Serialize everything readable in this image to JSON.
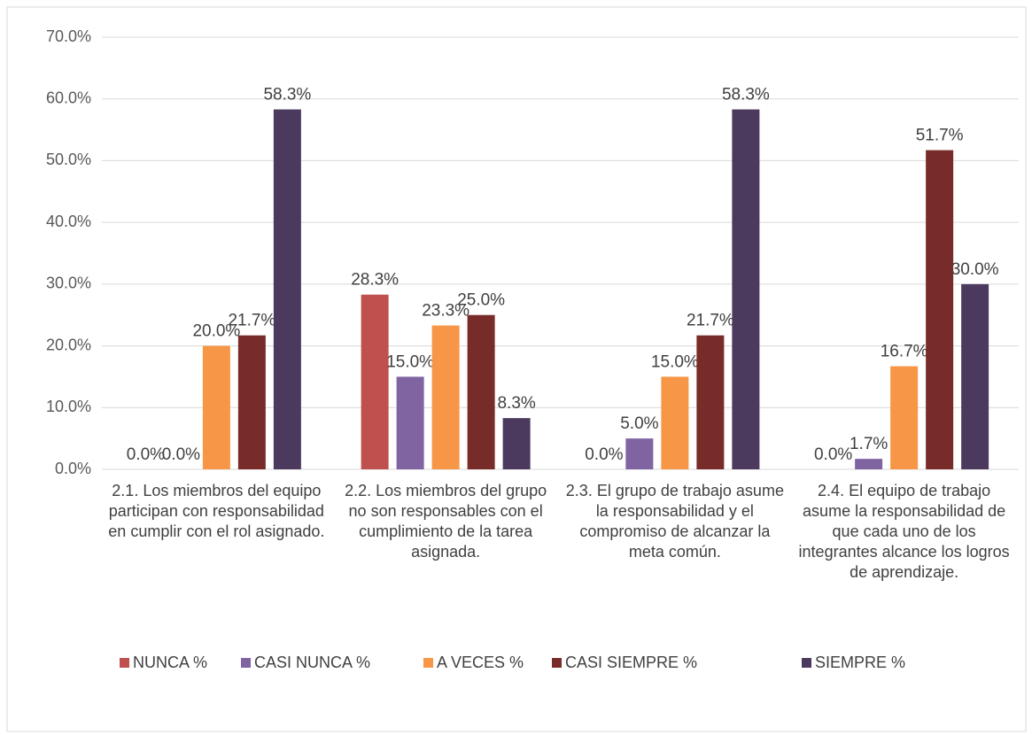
{
  "chart_data": {
    "type": "bar",
    "categories": [
      "2.1. Los miembros del equipo participan con responsabilidad en cumplir con el rol asignado.",
      "2.2. Los miembros del grupo no son responsables con el cumplimiento de la tarea asignada.",
      "2.3. El grupo de trabajo asume la responsabilidad y el compromiso de alcanzar la meta común.",
      "2.4. El equipo de trabajo asume la responsabilidad de que cada uno de los integrantes alcance los logros de aprendizaje."
    ],
    "series": [
      {
        "name": "NUNCA %",
        "color": "#c0504d",
        "values": [
          0,
          28.3,
          0,
          0
        ],
        "value_labels": [
          "0.0%",
          "28.3%",
          "0.0%",
          "0.0%"
        ]
      },
      {
        "name": "CASI NUNCA %",
        "color": "#8064a2",
        "values": [
          0,
          15,
          5,
          1.7
        ],
        "value_labels": [
          "0.0%",
          "15.0%",
          "5.0%",
          "1.7%"
        ]
      },
      {
        "name": "A VECES %",
        "color": "#f79646",
        "values": [
          20,
          23.3,
          15,
          16.7
        ],
        "value_labels": [
          "20.0%",
          "23.3%",
          "15.0%",
          "16.7%"
        ]
      },
      {
        "name": "CASI SIEMPRE %",
        "color": "#772c2a",
        "values": [
          21.7,
          25,
          21.7,
          51.7
        ],
        "value_labels": [
          "21.7%",
          "25.0%",
          "21.7%",
          "51.7%"
        ]
      },
      {
        "name": "SIEMPRE %",
        "color": "#4b3a5e",
        "values": [
          58.3,
          8.3,
          58.3,
          30
        ],
        "value_labels": [
          "58.3%",
          "8.3%",
          "58.3%",
          "30.0%"
        ]
      }
    ],
    "ylim": [
      0,
      70
    ],
    "yticks": [
      {
        "value": 0,
        "label": "0.0%"
      },
      {
        "value": 10,
        "label": "10.0%"
      },
      {
        "value": 20,
        "label": "20.0%"
      },
      {
        "value": 30,
        "label": "30.0%"
      },
      {
        "value": 40,
        "label": "40.0%"
      },
      {
        "value": 50,
        "label": "50.0%"
      },
      {
        "value": 60,
        "label": "60.0%"
      },
      {
        "value": 70,
        "label": "70.0%"
      }
    ],
    "grid": true,
    "legend": "bottom"
  }
}
